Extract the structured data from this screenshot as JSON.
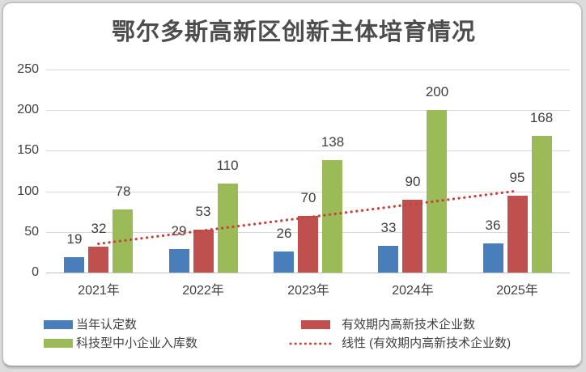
{
  "chart_data": {
    "type": "bar",
    "title": "鄂尔多斯高新区创新主体培育情况",
    "categories": [
      "2021年",
      "2022年",
      "2023年",
      "2024年",
      "2025年"
    ],
    "series": [
      {
        "name": "当年认定数",
        "color": "#4A7EBB",
        "values": [
          19,
          29,
          26,
          33,
          36
        ]
      },
      {
        "name": "有效期内高新技术企业数",
        "color": "#C0504D",
        "values": [
          32,
          53,
          70,
          90,
          95
        ]
      },
      {
        "name": "科技型中小企业入库数",
        "color": "#9BBB59",
        "values": [
          78,
          110,
          138,
          200,
          168
        ]
      }
    ],
    "trendline": {
      "label": "线性 (有效期内高新技术企业数)",
      "of_series": "有效期内高新技术企业数",
      "color": "#C5433C",
      "style": "dotted"
    },
    "y_ticks": [
      0,
      50,
      100,
      150,
      200,
      250
    ],
    "ylim": [
      0,
      250
    ],
    "grid": true,
    "legend_position": "bottom",
    "value_labels": true,
    "colors": {
      "gridline": "#d9d9d9",
      "axis_line": "#bfbfbf",
      "text": "#404040"
    }
  },
  "legend": {
    "items": [
      {
        "kind": "rect",
        "series": 0,
        "label": "当年认定数"
      },
      {
        "kind": "rect",
        "series": 1,
        "label": "有效期内高新技术企业数"
      },
      {
        "kind": "rect",
        "series": 2,
        "label": "科技型中小企业入库数"
      },
      {
        "kind": "dotted-line",
        "series": -1,
        "label": "线性 (有效期内高新技术企业数)"
      }
    ]
  }
}
